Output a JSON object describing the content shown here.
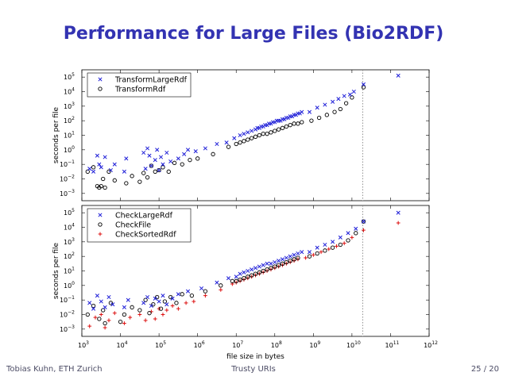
{
  "slide": {
    "title": "Performance for Large Files (Bio2RDF)",
    "footer_author": "Tobias Kuhn, ETH Zurich",
    "footer_talk": "Trusty URIs",
    "footer_page": "25 / 20"
  },
  "colors": {
    "blue": "#1f1fd8",
    "black": "#000000",
    "red": "#dd1111",
    "title": "#3333b2",
    "vline": "#888888"
  },
  "chart_data": [
    {
      "type": "scatter",
      "title": "",
      "xlabel": "",
      "ylabel": "seconds per file",
      "xscale": "log",
      "yscale": "log",
      "xlim_exp": [
        3,
        12
      ],
      "ylim_exp": [
        -3.5,
        5.5
      ],
      "ytick_exps": [
        -3,
        -2,
        -1,
        0,
        1,
        2,
        3,
        4,
        5
      ],
      "vertical_line_x_exp": 10.28,
      "legend_position": "top-left",
      "series": [
        {
          "name": "TransformLargeRdf",
          "marker": "x",
          "color": "blue",
          "points": [
            [
              3.2,
              -1.3
            ],
            [
              3.3,
              -1.5
            ],
            [
              3.4,
              -0.4
            ],
            [
              3.45,
              -1.0
            ],
            [
              3.5,
              -1.2
            ],
            [
              3.6,
              -0.5
            ],
            [
              3.75,
              -1.4
            ],
            [
              3.85,
              -1.0
            ],
            [
              4.1,
              -1.5
            ],
            [
              4.15,
              -0.6
            ],
            [
              4.6,
              -0.2
            ],
            [
              4.65,
              -1.3
            ],
            [
              4.7,
              0.1
            ],
            [
              4.75,
              -0.4
            ],
            [
              4.8,
              -1.1
            ],
            [
              4.9,
              -0.7
            ],
            [
              4.95,
              0.0
            ],
            [
              5.0,
              -1.4
            ],
            [
              5.05,
              -0.5
            ],
            [
              5.1,
              -1.0
            ],
            [
              5.2,
              -0.2
            ],
            [
              5.3,
              -0.8
            ],
            [
              5.5,
              -0.6
            ],
            [
              5.65,
              -0.3
            ],
            [
              5.75,
              0.0
            ],
            [
              5.95,
              -0.1
            ],
            [
              6.2,
              0.1
            ],
            [
              6.5,
              0.4
            ],
            [
              6.75,
              0.5
            ],
            [
              6.95,
              0.8
            ],
            [
              7.1,
              1.0
            ],
            [
              7.2,
              1.1
            ],
            [
              7.3,
              1.2
            ],
            [
              7.4,
              1.3
            ],
            [
              7.5,
              1.4
            ],
            [
              7.55,
              1.5
            ],
            [
              7.6,
              1.5
            ],
            [
              7.65,
              1.6
            ],
            [
              7.7,
              1.6
            ],
            [
              7.75,
              1.7
            ],
            [
              7.8,
              1.7
            ],
            [
              7.85,
              1.8
            ],
            [
              7.9,
              1.8
            ],
            [
              7.95,
              1.9
            ],
            [
              8.0,
              1.9
            ],
            [
              8.05,
              2.0
            ],
            [
              8.1,
              2.0
            ],
            [
              8.15,
              2.0
            ],
            [
              8.2,
              2.1
            ],
            [
              8.25,
              2.1
            ],
            [
              8.3,
              2.2
            ],
            [
              8.35,
              2.2
            ],
            [
              8.4,
              2.3
            ],
            [
              8.45,
              2.3
            ],
            [
              8.5,
              2.4
            ],
            [
              8.55,
              2.4
            ],
            [
              8.6,
              2.5
            ],
            [
              8.65,
              2.5
            ],
            [
              8.7,
              2.6
            ],
            [
              8.9,
              2.6
            ],
            [
              9.1,
              2.9
            ],
            [
              9.3,
              3.1
            ],
            [
              9.5,
              3.3
            ],
            [
              9.65,
              3.5
            ],
            [
              9.8,
              3.7
            ],
            [
              9.95,
              3.8
            ],
            [
              10.05,
              4.0
            ],
            [
              10.3,
              4.5
            ],
            [
              11.2,
              5.1
            ]
          ]
        },
        {
          "name": "TransformRdf",
          "marker": "o",
          "color": "black",
          "points": [
            [
              3.15,
              -1.5
            ],
            [
              3.3,
              -1.2
            ],
            [
              3.4,
              -2.5
            ],
            [
              3.45,
              -2.6
            ],
            [
              3.5,
              -2.5
            ],
            [
              3.55,
              -2.0
            ],
            [
              3.6,
              -2.6
            ],
            [
              3.7,
              -1.5
            ],
            [
              3.85,
              -2.1
            ],
            [
              4.15,
              -2.3
            ],
            [
              4.3,
              -1.8
            ],
            [
              4.5,
              -2.2
            ],
            [
              4.6,
              -1.6
            ],
            [
              4.7,
              -1.9
            ],
            [
              4.8,
              -1.1
            ],
            [
              4.9,
              -1.5
            ],
            [
              5.0,
              -1.4
            ],
            [
              5.1,
              -1.2
            ],
            [
              5.25,
              -1.5
            ],
            [
              5.4,
              -0.9
            ],
            [
              5.6,
              -1.0
            ],
            [
              5.8,
              -0.7
            ],
            [
              6.0,
              -0.6
            ],
            [
              6.4,
              -0.3
            ],
            [
              6.8,
              0.2
            ],
            [
              7.0,
              0.4
            ],
            [
              7.1,
              0.5
            ],
            [
              7.2,
              0.6
            ],
            [
              7.3,
              0.7
            ],
            [
              7.4,
              0.8
            ],
            [
              7.5,
              0.9
            ],
            [
              7.6,
              1.0
            ],
            [
              7.7,
              1.1
            ],
            [
              7.8,
              1.1
            ],
            [
              7.9,
              1.2
            ],
            [
              8.0,
              1.3
            ],
            [
              8.1,
              1.4
            ],
            [
              8.2,
              1.5
            ],
            [
              8.3,
              1.6
            ],
            [
              8.4,
              1.7
            ],
            [
              8.5,
              1.8
            ],
            [
              8.6,
              1.8
            ],
            [
              8.7,
              1.9
            ],
            [
              8.95,
              2.0
            ],
            [
              9.15,
              2.2
            ],
            [
              9.35,
              2.4
            ],
            [
              9.55,
              2.6
            ],
            [
              9.7,
              2.8
            ],
            [
              9.85,
              3.2
            ],
            [
              10.0,
              3.6
            ],
            [
              10.3,
              4.3
            ]
          ]
        }
      ]
    },
    {
      "type": "scatter",
      "title": "",
      "xlabel": "file size in bytes",
      "ylabel": "seconds per file",
      "xscale": "log",
      "yscale": "log",
      "xlim_exp": [
        3,
        12
      ],
      "ylim_exp": [
        -3.5,
        5.5
      ],
      "xtick_exps": [
        3,
        4,
        5,
        6,
        7,
        8,
        9,
        10,
        11,
        12
      ],
      "ytick_exps": [
        -3,
        -2,
        -1,
        0,
        1,
        2,
        3,
        4,
        5
      ],
      "vertical_line_x_exp": 10.28,
      "legend_position": "top-left",
      "series": [
        {
          "name": "CheckLargeRdf",
          "marker": "x",
          "color": "blue",
          "points": [
            [
              3.2,
              -1.2
            ],
            [
              3.3,
              -1.6
            ],
            [
              3.4,
              -0.7
            ],
            [
              3.5,
              -1.1
            ],
            [
              3.6,
              -1.5
            ],
            [
              3.7,
              -0.8
            ],
            [
              3.8,
              -1.3
            ],
            [
              4.1,
              -1.5
            ],
            [
              4.2,
              -1.0
            ],
            [
              4.6,
              -1.2
            ],
            [
              4.7,
              -0.8
            ],
            [
              4.8,
              -1.4
            ],
            [
              4.9,
              -0.9
            ],
            [
              5.0,
              -1.1
            ],
            [
              5.1,
              -0.7
            ],
            [
              5.2,
              -1.3
            ],
            [
              5.35,
              -0.9
            ],
            [
              5.5,
              -0.6
            ],
            [
              5.75,
              -0.4
            ],
            [
              6.1,
              -0.2
            ],
            [
              6.5,
              0.2
            ],
            [
              6.8,
              0.5
            ],
            [
              7.0,
              0.6
            ],
            [
              7.1,
              0.8
            ],
            [
              7.2,
              0.9
            ],
            [
              7.3,
              1.0
            ],
            [
              7.4,
              1.1
            ],
            [
              7.5,
              1.2
            ],
            [
              7.6,
              1.3
            ],
            [
              7.7,
              1.4
            ],
            [
              7.8,
              1.5
            ],
            [
              7.9,
              1.5
            ],
            [
              8.0,
              1.6
            ],
            [
              8.1,
              1.7
            ],
            [
              8.2,
              1.8
            ],
            [
              8.3,
              1.9
            ],
            [
              8.4,
              2.0
            ],
            [
              8.5,
              2.1
            ],
            [
              8.6,
              2.2
            ],
            [
              8.7,
              2.3
            ],
            [
              8.9,
              2.3
            ],
            [
              9.1,
              2.6
            ],
            [
              9.3,
              2.8
            ],
            [
              9.5,
              3.0
            ],
            [
              9.7,
              3.3
            ],
            [
              9.9,
              3.6
            ],
            [
              10.1,
              3.9
            ],
            [
              10.3,
              4.4
            ],
            [
              11.2,
              5.0
            ]
          ]
        },
        {
          "name": "CheckFile",
          "marker": "o",
          "color": "black",
          "points": [
            [
              3.15,
              -2.0
            ],
            [
              3.3,
              -1.4
            ],
            [
              3.45,
              -2.3
            ],
            [
              3.55,
              -1.7
            ],
            [
              3.6,
              -2.6
            ],
            [
              3.75,
              -1.2
            ],
            [
              4.0,
              -2.5
            ],
            [
              4.1,
              -2.0
            ],
            [
              4.3,
              -1.5
            ],
            [
              4.5,
              -1.7
            ],
            [
              4.65,
              -1.0
            ],
            [
              4.75,
              -1.9
            ],
            [
              4.85,
              -1.3
            ],
            [
              4.95,
              -0.8
            ],
            [
              5.05,
              -1.6
            ],
            [
              5.15,
              -1.1
            ],
            [
              5.3,
              -0.8
            ],
            [
              5.45,
              -1.2
            ],
            [
              5.6,
              -0.6
            ],
            [
              5.85,
              -0.7
            ],
            [
              6.2,
              -0.4
            ],
            [
              6.6,
              0.0
            ],
            [
              6.9,
              0.3
            ],
            [
              7.0,
              0.3
            ],
            [
              7.1,
              0.4
            ],
            [
              7.2,
              0.5
            ],
            [
              7.3,
              0.6
            ],
            [
              7.4,
              0.7
            ],
            [
              7.5,
              0.8
            ],
            [
              7.6,
              0.9
            ],
            [
              7.7,
              1.0
            ],
            [
              7.8,
              1.1
            ],
            [
              7.9,
              1.2
            ],
            [
              8.0,
              1.3
            ],
            [
              8.1,
              1.4
            ],
            [
              8.2,
              1.5
            ],
            [
              8.3,
              1.6
            ],
            [
              8.4,
              1.7
            ],
            [
              8.5,
              1.8
            ],
            [
              8.6,
              1.9
            ],
            [
              8.9,
              2.0
            ],
            [
              9.1,
              2.2
            ],
            [
              9.3,
              2.4
            ],
            [
              9.5,
              2.6
            ],
            [
              9.7,
              2.8
            ],
            [
              9.9,
              3.1
            ],
            [
              10.1,
              3.6
            ],
            [
              10.3,
              4.4
            ]
          ]
        },
        {
          "name": "CheckSortedRdf",
          "marker": "+",
          "color": "red",
          "points": [
            [
              3.2,
              -2.8
            ],
            [
              3.35,
              -2.2
            ],
            [
              3.5,
              -2.0
            ],
            [
              3.6,
              -2.9
            ],
            [
              3.7,
              -2.4
            ],
            [
              3.85,
              -1.9
            ],
            [
              4.1,
              -2.6
            ],
            [
              4.25,
              -2.2
            ],
            [
              4.5,
              -2.0
            ],
            [
              4.65,
              -2.4
            ],
            [
              4.8,
              -1.8
            ],
            [
              4.9,
              -2.3
            ],
            [
              5.0,
              -1.6
            ],
            [
              5.1,
              -2.0
            ],
            [
              5.2,
              -1.7
            ],
            [
              5.35,
              -1.4
            ],
            [
              5.5,
              -1.6
            ],
            [
              5.7,
              -1.2
            ],
            [
              5.9,
              -1.1
            ],
            [
              6.2,
              -0.7
            ],
            [
              6.6,
              -0.3
            ],
            [
              6.9,
              0.1
            ],
            [
              7.0,
              0.2
            ],
            [
              7.1,
              0.3
            ],
            [
              7.2,
              0.4
            ],
            [
              7.3,
              0.5
            ],
            [
              7.4,
              0.6
            ],
            [
              7.5,
              0.7
            ],
            [
              7.6,
              0.8
            ],
            [
              7.7,
              0.9
            ],
            [
              7.8,
              1.0
            ],
            [
              7.9,
              1.1
            ],
            [
              8.0,
              1.2
            ],
            [
              8.1,
              1.3
            ],
            [
              8.2,
              1.4
            ],
            [
              8.3,
              1.5
            ],
            [
              8.4,
              1.6
            ],
            [
              8.5,
              1.7
            ],
            [
              8.6,
              1.8
            ],
            [
              8.8,
              1.9
            ],
            [
              9.0,
              2.1
            ],
            [
              9.2,
              2.3
            ],
            [
              9.4,
              2.5
            ],
            [
              9.6,
              2.7
            ],
            [
              9.8,
              2.9
            ],
            [
              10.0,
              3.3
            ],
            [
              10.3,
              3.8
            ],
            [
              11.2,
              4.3
            ]
          ]
        }
      ]
    }
  ]
}
